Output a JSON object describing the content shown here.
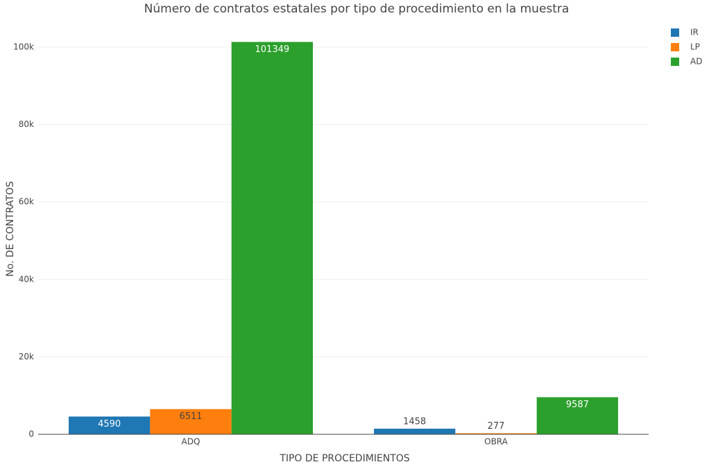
{
  "chart_data": {
    "type": "bar",
    "title": "Número de contratos estatales por tipo de procedimiento en la muestra",
    "x_label": "TIPO DE PROCEDIMIENTOS",
    "y_label": "No. DE CONTRATOS",
    "categories": [
      "ADQ",
      "OBRA"
    ],
    "series": [
      {
        "name": "IR",
        "color": "#1f77b4",
        "values": [
          4590,
          1458
        ]
      },
      {
        "name": "LP",
        "color": "#ff7f0e",
        "values": [
          6511,
          277
        ]
      },
      {
        "name": "AD",
        "color": "#2ca02c",
        "values": [
          101349,
          9587
        ]
      }
    ],
    "ylim": [
      0,
      106000
    ],
    "yticks": [
      0,
      {
        "value": 20000,
        "label": "20k"
      },
      {
        "value": 40000,
        "label": "40k"
      },
      {
        "value": 60000,
        "label": "60k"
      },
      {
        "value": 80000,
        "label": "80k"
      },
      {
        "value": 100000,
        "label": "100k"
      }
    ],
    "grid": true,
    "legend": "top-right"
  }
}
